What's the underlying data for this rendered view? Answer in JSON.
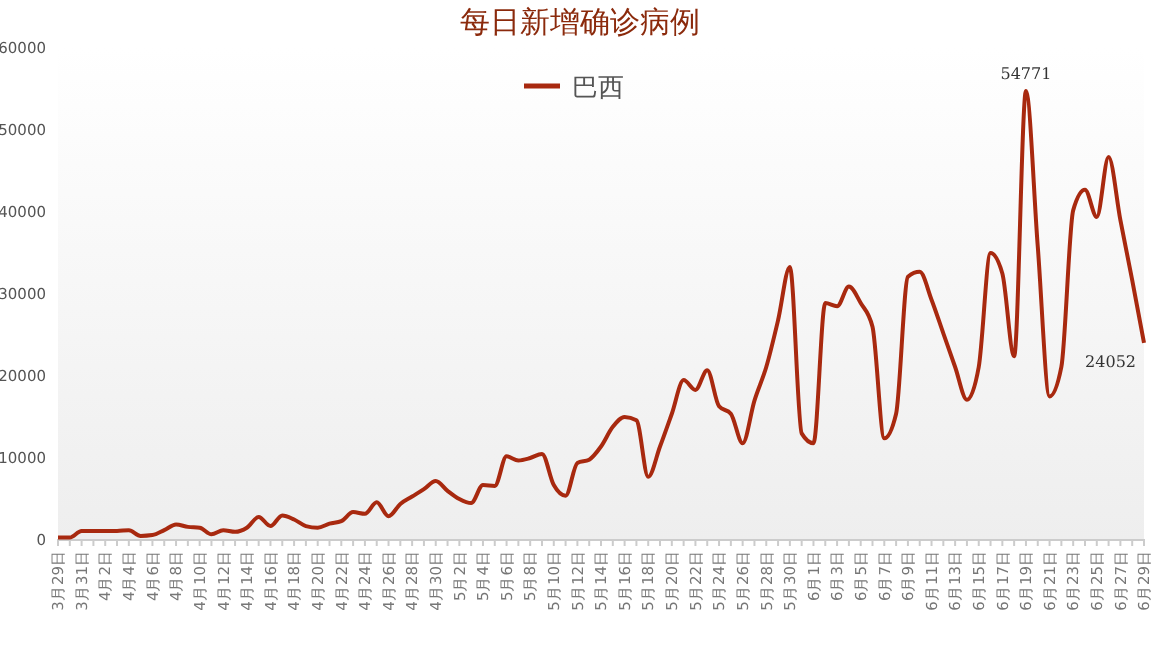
{
  "chart_data": {
    "type": "line",
    "title": "每日新增确诊病例",
    "categories": [
      "3月29日",
      null,
      "3月31日",
      null,
      "4月2日",
      null,
      "4月4日",
      null,
      "4月6日",
      null,
      "4月8日",
      null,
      "4月10日",
      null,
      "4月12日",
      null,
      "4月14日",
      null,
      "4月16日",
      null,
      "4月18日",
      null,
      "4月20日",
      null,
      "4月22日",
      null,
      "4月24日",
      null,
      "4月26日",
      null,
      "4月28日",
      null,
      "4月30日",
      null,
      "5月2日",
      null,
      "5月4日",
      null,
      "5月6日",
      null,
      "5月8日",
      null,
      "5月10日",
      null,
      "5月12日",
      null,
      "5月14日",
      null,
      "5月16日",
      null,
      "5月18日",
      null,
      "5月20日",
      null,
      "5月22日",
      null,
      "5月24日",
      null,
      "5月26日",
      null,
      "5月28日",
      null,
      "5月30日",
      null,
      "6月1日",
      null,
      "6月3日",
      null,
      "6月5日",
      null,
      "6月7日",
      null,
      "6月9日",
      null,
      "6月11日",
      null,
      "6月13日",
      null,
      "6月15日",
      null,
      "6月17日",
      null,
      "6月19日",
      null,
      "6月21日",
      null,
      "6月23日",
      null,
      "6月25日",
      null,
      "6月27日",
      null,
      "6月29日"
    ],
    "series": [
      {
        "name": "巴西",
        "color": "#a8290f",
        "values": [
          300,
          300,
          1100,
          1100,
          1100,
          1100,
          1200,
          500,
          600,
          1200,
          1900,
          1600,
          1500,
          700,
          1200,
          1000,
          1500,
          2800,
          1700,
          3000,
          2500,
          1700,
          1500,
          2000,
          2300,
          3400,
          3200,
          4600,
          2900,
          4400,
          5300,
          6200,
          7200,
          6000,
          5000,
          4500,
          6700,
          6600,
          10200,
          9700,
          10000,
          10500,
          6700,
          5400,
          9400,
          9800,
          11400,
          13800,
          15000,
          14600,
          7700,
          11400,
          15400,
          19500,
          18300,
          20700,
          16300,
          15400,
          11800,
          17000,
          21100,
          26800,
          33300,
          13000,
          11800,
          28900,
          28500,
          30900,
          28900,
          26000,
          12400,
          15400,
          32100,
          32700,
          29300,
          25200,
          21100,
          17100,
          21100,
          35000,
          32500,
          22400,
          54771,
          35800,
          17500,
          21100,
          40200,
          42700,
          39400,
          46700,
          39000,
          31700,
          24052
        ],
        "value_labels": [
          null,
          null,
          null,
          null,
          null,
          null,
          null,
          null,
          null,
          null,
          null,
          null,
          null,
          null,
          null,
          null,
          null,
          null,
          null,
          null,
          null,
          null,
          null,
          null,
          null,
          null,
          null,
          null,
          null,
          null,
          null,
          null,
          null,
          null,
          null,
          null,
          null,
          null,
          null,
          null,
          null,
          null,
          null,
          null,
          null,
          null,
          null,
          null,
          null,
          null,
          null,
          null,
          null,
          null,
          null,
          null,
          null,
          null,
          null,
          null,
          null,
          null,
          null,
          null,
          null,
          null,
          null,
          null,
          null,
          null,
          null,
          null,
          null,
          null,
          null,
          null,
          null,
          null,
          null,
          null,
          null,
          null,
          "54771",
          null,
          null,
          null,
          null,
          null,
          null,
          null,
          null,
          null,
          "24052"
        ]
      }
    ],
    "ylim": [
      0,
      60000
    ],
    "yticks": [
      0,
      10000,
      20000,
      30000,
      40000,
      50000,
      60000
    ],
    "legend": "top",
    "grid": false
  }
}
